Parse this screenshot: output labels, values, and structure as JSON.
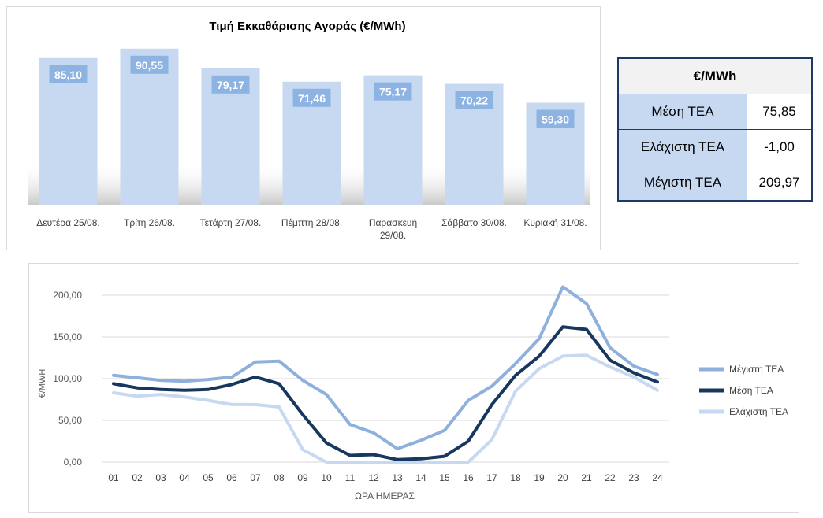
{
  "chart_data": [
    {
      "type": "bar",
      "title": "Τιμή Εκκαθάρισης Αγοράς (€/MWh)",
      "categories": [
        "Δευτέρα 25/08.",
        "Τρίτη 26/08.",
        "Τετάρτη 27/08.",
        "Πέμπτη 28/08.",
        "Παρασκευή 29/08.",
        "Σάββατο 30/08.",
        "Κυριακή 31/08."
      ],
      "category_lines": [
        [
          "Δευτέρα 25/08."
        ],
        [
          "Τρίτη 26/08."
        ],
        [
          "Τετάρτη 27/08."
        ],
        [
          "Πέμπτη 28/08."
        ],
        [
          "Παρασκευή",
          "29/08."
        ],
        [
          "Σάββατο 30/08."
        ],
        [
          "Κυριακή 31/08."
        ]
      ],
      "values": [
        85.1,
        90.55,
        79.17,
        71.46,
        75.17,
        70.22,
        59.3
      ],
      "value_labels": [
        "85,10",
        "90,55",
        "79,17",
        "71,46",
        "75,17",
        "70,22",
        "59,30"
      ],
      "ylim": [
        0,
        100
      ],
      "bar_color": "#c6d9f1",
      "label_color": "#8db3e2"
    },
    {
      "type": "line",
      "x": [
        "01",
        "02",
        "03",
        "04",
        "05",
        "06",
        "07",
        "08",
        "09",
        "10",
        "11",
        "12",
        "13",
        "14",
        "15",
        "16",
        "17",
        "18",
        "19",
        "20",
        "21",
        "22",
        "23",
        "24"
      ],
      "xlabel": "ΩΡΑ ΗΜΕΡΑΣ",
      "ylabel": "€/MWH",
      "ylim": [
        0,
        200
      ],
      "yticks": [
        "0,00",
        "50,00",
        "100,00",
        "150,00",
        "200,00"
      ],
      "grid": true,
      "legend_position": "right",
      "series": [
        {
          "name": "Μέγιστη ΤΕΑ",
          "color": "#8eb0dc",
          "values": [
            104,
            101,
            98,
            97,
            99,
            102,
            120,
            121,
            98,
            81,
            45,
            35,
            16,
            26,
            38,
            74,
            91,
            118,
            148,
            210,
            190,
            137,
            115,
            105
          ]
        },
        {
          "name": "Μέση ΤΕΑ",
          "color": "#17375e",
          "values": [
            94,
            89,
            87,
            86,
            87,
            93,
            102,
            94,
            57,
            23,
            8,
            9,
            3,
            4,
            7,
            25,
            69,
            104,
            127,
            162,
            159,
            122,
            107,
            96
          ]
        },
        {
          "name": "Ελάχιστη ΤΕΑ",
          "color": "#c6d9f1",
          "values": [
            83,
            79,
            81,
            78,
            74,
            69,
            69,
            66,
            15,
            0,
            0,
            0,
            0,
            0,
            0,
            0,
            27,
            85,
            112,
            127,
            128,
            114,
            102,
            86
          ]
        }
      ]
    }
  ],
  "stats_table": {
    "header": "€/MWh",
    "rows": [
      {
        "label": "Μέση ΤΕΑ",
        "value": "75,85"
      },
      {
        "label": "Ελάχιστη ΤΕΑ",
        "value": "-1,00"
      },
      {
        "label": "Μέγιστη ΤΕΑ",
        "value": "209,97"
      }
    ]
  }
}
